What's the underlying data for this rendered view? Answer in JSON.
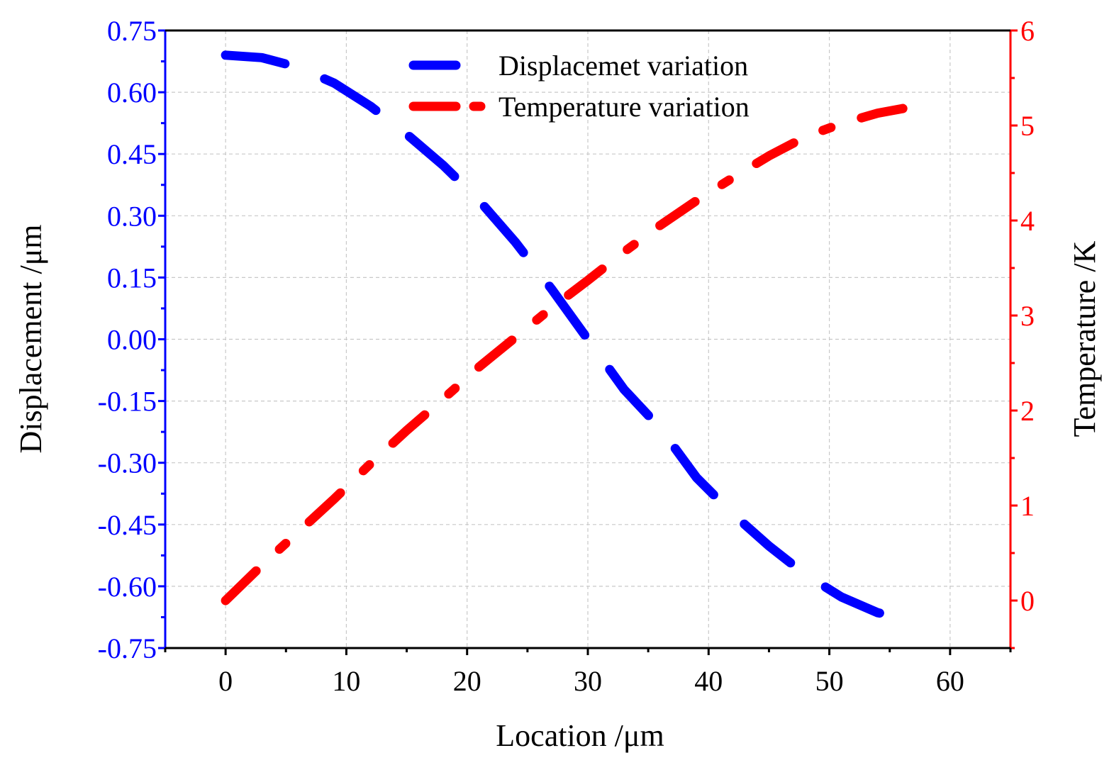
{
  "chart_data": {
    "type": "line",
    "title": "",
    "xlabel": "Location /μm",
    "ylabel": "Displacement /μm",
    "y2label": "Temperature /K",
    "xlim": [
      -5,
      65
    ],
    "ylim": [
      -0.75,
      0.75
    ],
    "y2lim": [
      -0.5,
      6
    ],
    "x_ticks": [
      "0",
      "10",
      "20",
      "30",
      "40",
      "50",
      "60"
    ],
    "x_tick_values": [
      0,
      10,
      20,
      30,
      40,
      50,
      60
    ],
    "y_ticks": [
      "0.75",
      "0.60",
      "0.45",
      "0.30",
      "0.15",
      "0.00",
      "-0.15",
      "-0.30",
      "-0.45",
      "-0.60",
      "-0.75"
    ],
    "y_tick_values": [
      0.75,
      0.6,
      0.45,
      0.3,
      0.15,
      0,
      -0.15,
      -0.3,
      -0.45,
      -0.6,
      -0.75
    ],
    "y2_ticks": [
      "0",
      "1",
      "2",
      "3",
      "4",
      "5",
      "6"
    ],
    "y2_tick_values": [
      0,
      1,
      2,
      3,
      4,
      5,
      6
    ],
    "grid": true,
    "legend_position": "top-center",
    "colors": {
      "left_axis": "#0000ff",
      "right_axis": "#ff0000",
      "bottom_axis": "#000000",
      "grid": "#c8c8c8"
    },
    "series": [
      {
        "name": "Displacemet variation",
        "axis": "left",
        "color": "#0000ff",
        "line_style": "dash",
        "x": [
          0,
          3,
          6,
          9,
          12,
          15,
          18,
          21,
          24,
          27,
          30,
          33,
          36,
          39,
          42,
          45,
          48,
          51,
          54,
          57
        ],
        "values": [
          0.69,
          0.684,
          0.661,
          0.622,
          0.566,
          0.498,
          0.423,
          0.337,
          0.236,
          0.122,
          0.0,
          -0.122,
          -0.216,
          -0.336,
          -0.424,
          -0.502,
          -0.571,
          -0.626,
          -0.664,
          -0.683
        ]
      },
      {
        "name": "Temperature variation",
        "axis": "right",
        "color": "#ff0000",
        "line_style": "dash",
        "x": [
          0,
          3,
          6,
          9,
          12,
          15,
          18,
          21,
          24,
          27,
          30,
          33,
          36,
          39,
          42,
          45,
          48,
          51,
          54,
          57,
          58
        ],
        "values": [
          0.0,
          0.37,
          0.72,
          1.07,
          1.44,
          1.79,
          2.12,
          2.46,
          2.77,
          3.08,
          3.37,
          3.67,
          3.95,
          4.21,
          4.45,
          4.68,
          4.88,
          5.02,
          5.13,
          5.2,
          5.21
        ]
      }
    ]
  }
}
